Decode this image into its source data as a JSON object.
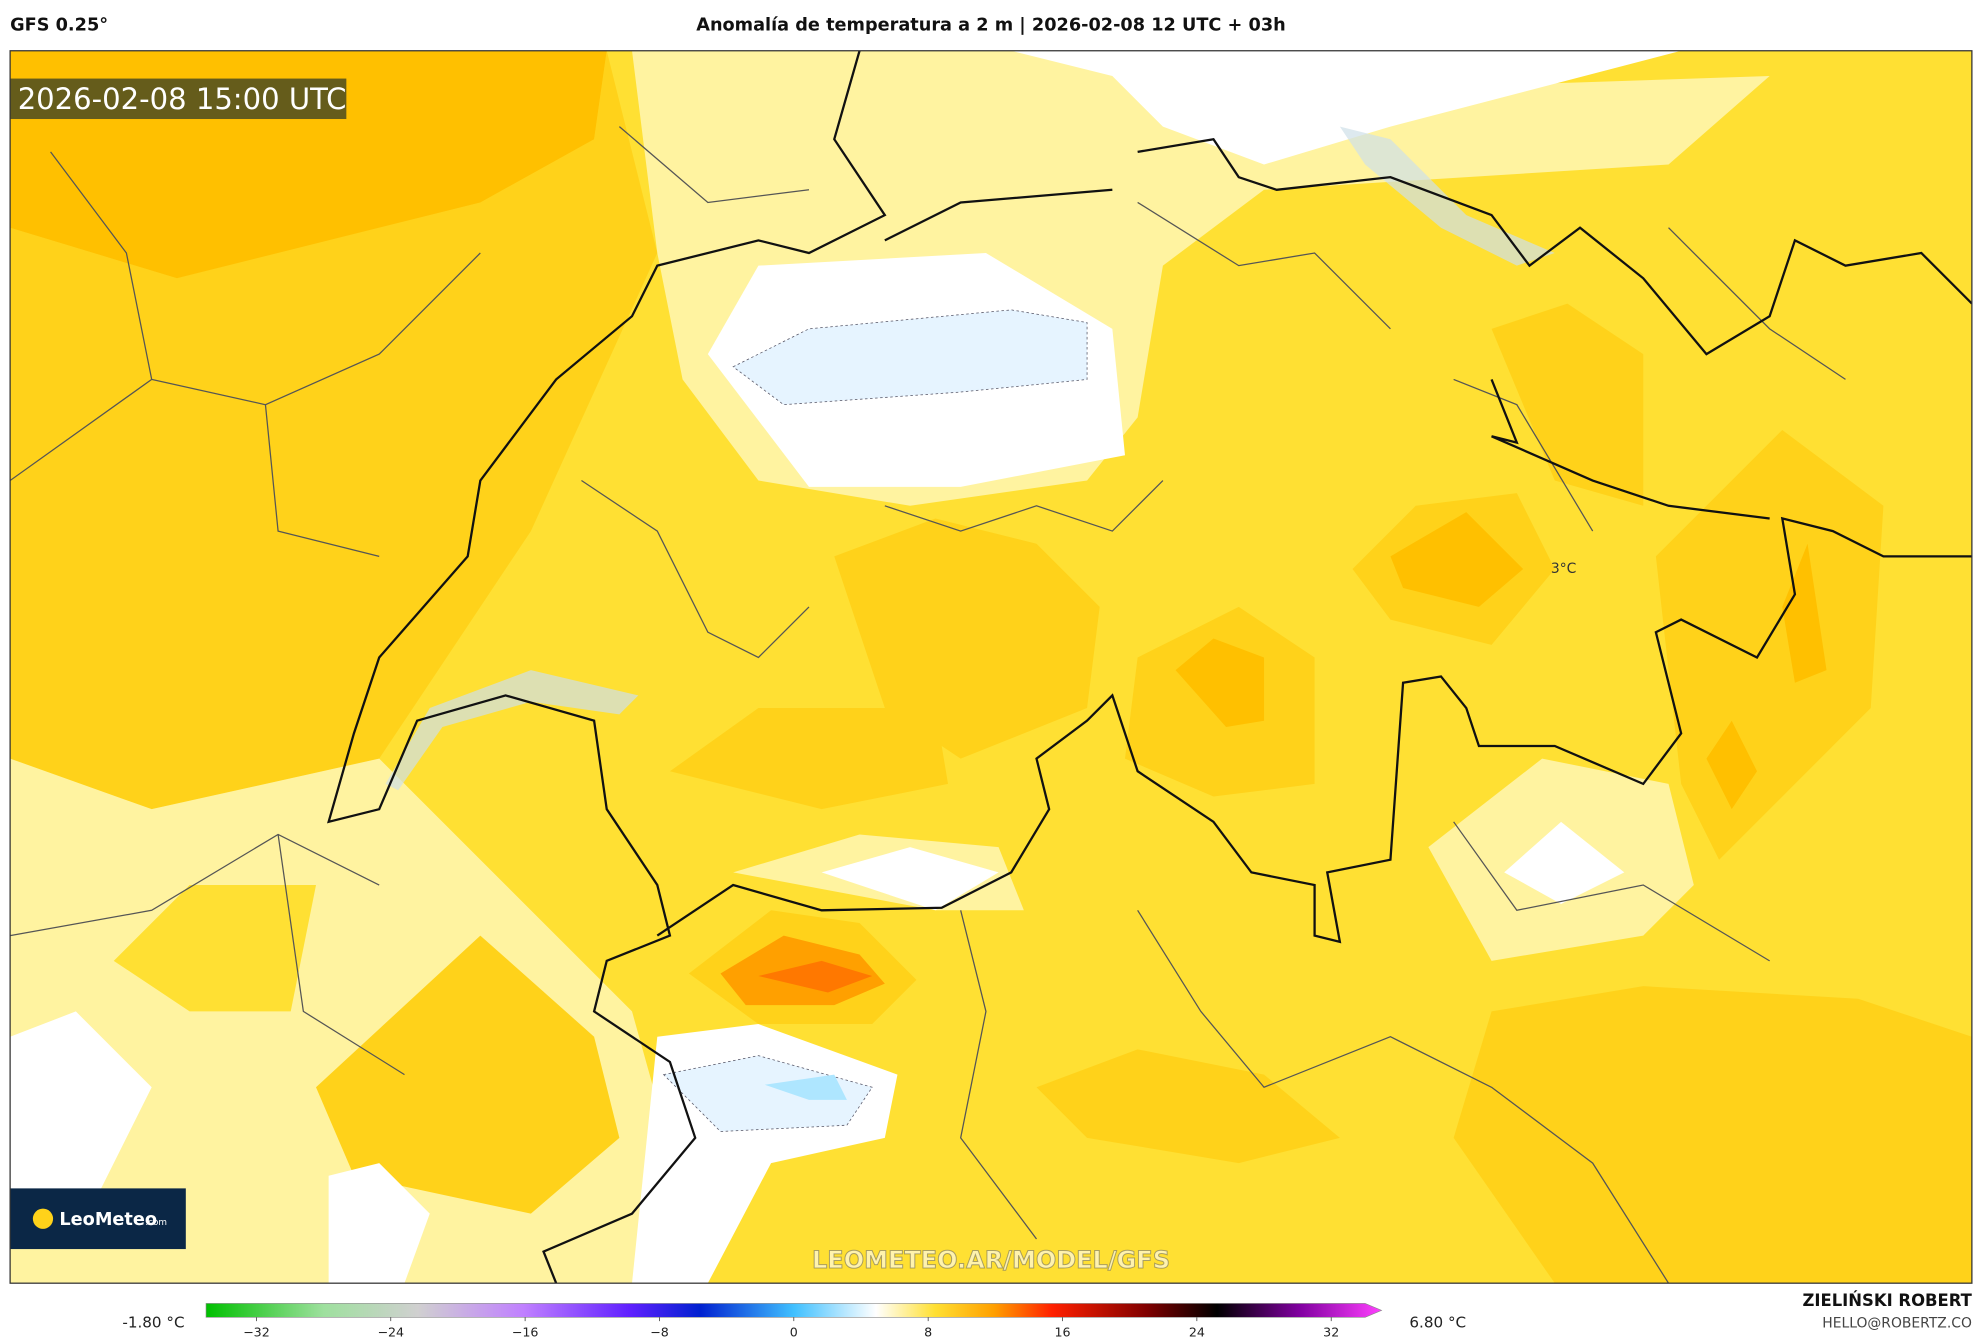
{
  "header": {
    "model": "GFS 0.25°",
    "title": "Anomalía de temperatura a 2 m | 2026-02-08 12 UTC + 03h"
  },
  "map": {
    "timestamp": "2026-02-08 15:00 UTC",
    "annotations": [
      "3°C"
    ],
    "watermark": "LEOMETEO.AR/MODEL/GFS",
    "logo": {
      "name": "LeoMeteo",
      "suffix": ".com"
    }
  },
  "colorbar": {
    "min_label": "-1.80 °C",
    "max_label": "6.80 °C",
    "lim": [
      -35,
      35
    ],
    "ticks": [
      {
        "value": -32,
        "label": "−32"
      },
      {
        "value": -24,
        "label": "−24"
      },
      {
        "value": -16,
        "label": "−16"
      },
      {
        "value": -8,
        "label": "−8"
      },
      0,
      8,
      16,
      24,
      32
    ]
  },
  "footer": {
    "author": "ZIELIŃSKI ROBERT",
    "email": "HELLO@ROBERTZ.CO"
  }
}
